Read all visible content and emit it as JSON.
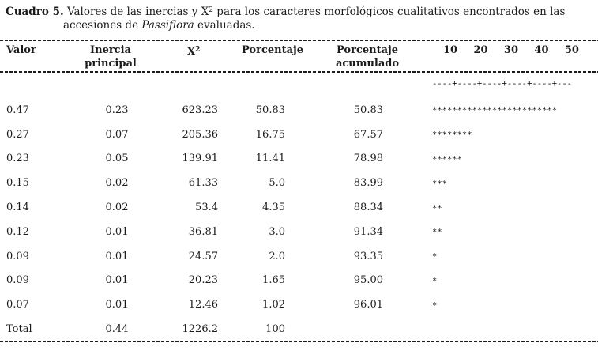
{
  "title": {
    "label": "Cuadro 5.",
    "line1_rest": " Valores de las inercias y X",
    "sup": "2",
    "line1_tail": " para los caracteres morfológicos cualitativos encontrados en las",
    "line2_start": "accesiones de ",
    "line2_italic": "Passiflora",
    "line2_end": " evaluadas."
  },
  "header": {
    "col_valor": "Valor",
    "col_inercia_l1": "Inercia",
    "col_inercia_l2": "principal",
    "col_chi": "X",
    "col_chi_sup": "2",
    "col_pct": "Porcentaje",
    "col_pct_acum_l1": "Porcentaje",
    "col_pct_acum_l2": "acumulado",
    "scale_labels": [
      "10",
      "20",
      "30",
      "40",
      "50"
    ]
  },
  "chart": {
    "scale_line": "----+----+----+----+----+---"
  },
  "table": {
    "rows": [
      {
        "valor": "0.47",
        "inercia": "0.23",
        "chi2": "623.23",
        "pct": "50.83",
        "pct_acum": "50.83",
        "bar": "*************************"
      },
      {
        "valor": "0.27",
        "inercia": "0.07",
        "chi2": "205.36",
        "pct": "16.75",
        "pct_acum": "67.57",
        "bar": "********"
      },
      {
        "valor": "0.23",
        "inercia": "0.05",
        "chi2": "139.91",
        "pct": "11.41",
        "pct_acum": "78.98",
        "bar": "******"
      },
      {
        "valor": "0.15",
        "inercia": "0.02",
        "chi2": "61.33",
        "pct": "5.0",
        "pct_acum": "83.99",
        "bar": "***"
      },
      {
        "valor": "0.14",
        "inercia": "0.02",
        "chi2": "53.4",
        "pct": "4.35",
        "pct_acum": "88.34",
        "bar": "**"
      },
      {
        "valor": "0.12",
        "inercia": "0.01",
        "chi2": "36.81",
        "pct": "3.0",
        "pct_acum": "91.34",
        "bar": "**"
      },
      {
        "valor": "0.09",
        "inercia": "0.01",
        "chi2": "24.57",
        "pct": "2.0",
        "pct_acum": "93.35",
        "bar": "*"
      },
      {
        "valor": "0.09",
        "inercia": "0.01",
        "chi2": "20.23",
        "pct": "1.65",
        "pct_acum": "95.00",
        "bar": "*"
      },
      {
        "valor": "0.07",
        "inercia": "0.01",
        "chi2": "12.46",
        "pct": "1.02",
        "pct_acum": "96.01",
        "bar": "*"
      },
      {
        "valor": "Total",
        "inercia": "0.44",
        "chi2": "1226.2",
        "pct": "100",
        "pct_acum": "",
        "bar": ""
      }
    ]
  },
  "colors": {
    "text": "#1b1b1b",
    "line": "#1a1a1a",
    "background": "#ffffff"
  }
}
